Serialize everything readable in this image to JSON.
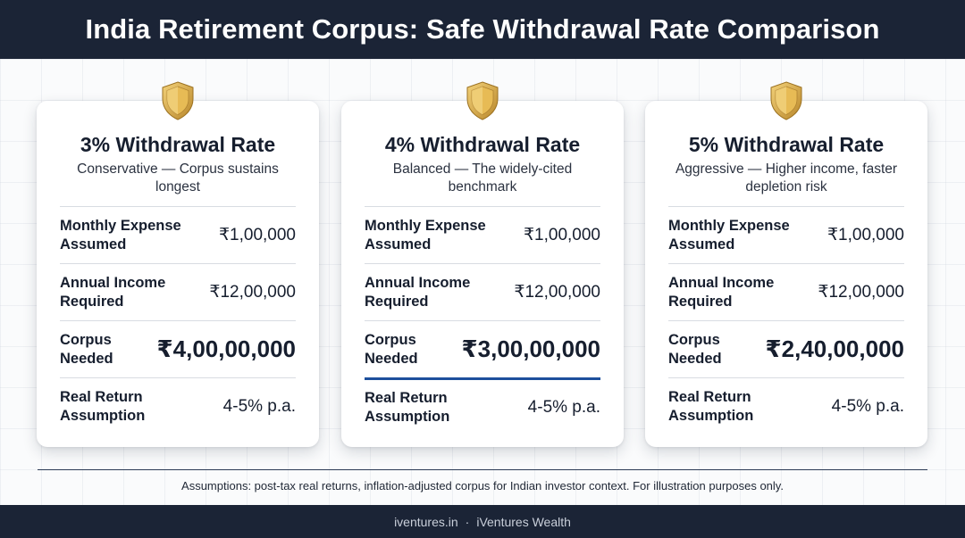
{
  "header": {
    "title": "India Retirement Corpus: Safe Withdrawal Rate Comparison"
  },
  "cards": [
    {
      "title": "3% Withdrawal Rate",
      "subtitle": "Conservative — Corpus sustains longest",
      "rows": [
        {
          "label": "Monthly Expense Assumed",
          "value": "₹1,00,000"
        },
        {
          "label": "Annual Income Required",
          "value": "₹12,00,000"
        },
        {
          "label": "Corpus Needed",
          "value": "₹4,00,00,000"
        },
        {
          "label": "Real Return Assumption",
          "value": "4-5% p.a."
        }
      ]
    },
    {
      "title": "4% Withdrawal Rate",
      "subtitle": "Balanced — The widely-cited benchmark",
      "rows": [
        {
          "label": "Monthly Expense Assumed",
          "value": "₹1,00,000"
        },
        {
          "label": "Annual Income Required",
          "value": "₹12,00,000"
        },
        {
          "label": "Corpus Needed",
          "value": "₹3,00,00,000"
        },
        {
          "label": "Real Return Assumption",
          "value": "4-5% p.a."
        }
      ]
    },
    {
      "title": "5% Withdrawal Rate",
      "subtitle": "Aggressive — Higher income, faster depletion risk",
      "rows": [
        {
          "label": "Monthly Expense Assumed",
          "value": "₹1,00,000"
        },
        {
          "label": "Annual Income Required",
          "value": "₹12,00,000"
        },
        {
          "label": "Corpus Needed",
          "value": "₹2,40,00,000"
        },
        {
          "label": "Real Return Assumption",
          "value": "4-5% p.a."
        }
      ]
    }
  ],
  "icons": {
    "card_badge": "shield-icon"
  },
  "colors": {
    "header_bg": "#1b2436",
    "shield_gold": "#d9a93a",
    "highlight_rule": "#1d4f9c"
  },
  "footer": {
    "note": "Assumptions: post-tax real returns, inflation-adjusted corpus for Indian investor context. For illustration purposes only.",
    "site": "iventures.in",
    "separator": "·",
    "brand": "iVentures Wealth"
  }
}
